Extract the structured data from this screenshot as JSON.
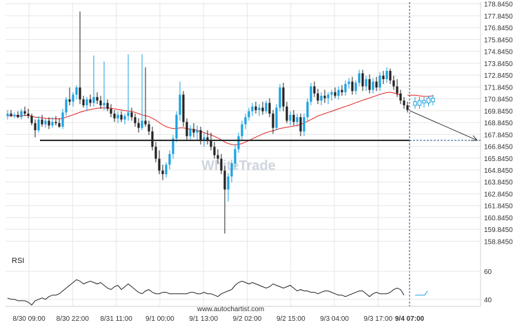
{
  "chart_data": {
    "type": "candlestick",
    "watermark": "WhiteTrade",
    "source": "www.autochartist.com",
    "y_ticks": [
      "178.8450",
      "177.8450",
      "176.8450",
      "175.8450",
      "174.8450",
      "173.8450",
      "172.8450",
      "171.8450",
      "170.8450",
      "169.8450",
      "168.8450",
      "167.8450",
      "166.8450",
      "165.8450",
      "164.8450",
      "163.8450",
      "162.8450",
      "161.8450",
      "160.8450",
      "159.8450",
      "158.8450"
    ],
    "ylim": [
      158.0,
      179.0
    ],
    "x_ticks": [
      "8/30 09:00",
      "8/30 22:00",
      "8/31 11:00",
      "9/1 00:00",
      "9/1 13:00",
      "9/2 02:00",
      "9/2 15:00",
      "9/3 04:00",
      "9/3 17:00",
      "9/4 07:00"
    ],
    "current_x_label": "9/4 07:00",
    "support_level": 167.35,
    "forecast": {
      "from_y": 169.85,
      "to_y": 167.35
    },
    "rsi": {
      "label": "RSI",
      "ticks": [
        "60",
        "40"
      ],
      "ylim": [
        35,
        63
      ]
    },
    "colors": {
      "bull": "#1ba1e2",
      "bear": "#222222",
      "ma": "#e02020",
      "support": "#222222",
      "forecast": "#333333",
      "grid": "#e6e6e6",
      "rsi": "#222222",
      "projection": "#1ba1e2"
    },
    "candles": [
      {
        "o": 169.4,
        "h": 169.9,
        "l": 169.1,
        "c": 169.6
      },
      {
        "o": 169.6,
        "h": 169.9,
        "l": 169.3,
        "c": 169.4
      },
      {
        "o": 169.4,
        "h": 169.7,
        "l": 169.2,
        "c": 169.5
      },
      {
        "o": 169.5,
        "h": 169.8,
        "l": 169.2,
        "c": 169.3
      },
      {
        "o": 169.3,
        "h": 170.0,
        "l": 169.1,
        "c": 169.8
      },
      {
        "o": 169.8,
        "h": 170.2,
        "l": 169.4,
        "c": 169.6
      },
      {
        "o": 169.6,
        "h": 170.0,
        "l": 169.2,
        "c": 169.4
      },
      {
        "o": 169.4,
        "h": 169.6,
        "l": 168.6,
        "c": 168.8
      },
      {
        "o": 168.8,
        "h": 169.1,
        "l": 167.6,
        "c": 168.2
      },
      {
        "o": 168.2,
        "h": 169.4,
        "l": 168.0,
        "c": 169.1
      },
      {
        "o": 169.1,
        "h": 169.5,
        "l": 168.5,
        "c": 168.7
      },
      {
        "o": 168.7,
        "h": 169.2,
        "l": 168.4,
        "c": 169.0
      },
      {
        "o": 169.0,
        "h": 169.3,
        "l": 168.3,
        "c": 168.6
      },
      {
        "o": 168.6,
        "h": 169.3,
        "l": 168.4,
        "c": 168.9
      },
      {
        "o": 168.9,
        "h": 169.4,
        "l": 168.6,
        "c": 168.8
      },
      {
        "o": 168.8,
        "h": 169.2,
        "l": 168.4,
        "c": 168.5
      },
      {
        "o": 168.5,
        "h": 170.0,
        "l": 168.3,
        "c": 169.7
      },
      {
        "o": 169.7,
        "h": 171.0,
        "l": 169.4,
        "c": 170.8
      },
      {
        "o": 170.8,
        "h": 171.8,
        "l": 170.3,
        "c": 170.6
      },
      {
        "o": 170.6,
        "h": 171.4,
        "l": 170.2,
        "c": 171.2
      },
      {
        "o": 171.2,
        "h": 172.0,
        "l": 170.8,
        "c": 171.8
      },
      {
        "o": 171.8,
        "h": 178.2,
        "l": 170.4,
        "c": 170.8
      },
      {
        "o": 170.8,
        "h": 171.1,
        "l": 170.1,
        "c": 170.3
      },
      {
        "o": 170.3,
        "h": 171.0,
        "l": 169.8,
        "c": 170.8
      },
      {
        "o": 170.8,
        "h": 171.2,
        "l": 170.2,
        "c": 170.5
      },
      {
        "o": 170.5,
        "h": 174.5,
        "l": 170.2,
        "c": 171.0
      },
      {
        "o": 171.0,
        "h": 171.4,
        "l": 170.4,
        "c": 170.7
      },
      {
        "o": 170.7,
        "h": 171.1,
        "l": 170.0,
        "c": 170.3
      },
      {
        "o": 170.3,
        "h": 174.0,
        "l": 169.9,
        "c": 170.5
      },
      {
        "o": 170.5,
        "h": 170.8,
        "l": 169.8,
        "c": 170.0
      },
      {
        "o": 170.0,
        "h": 170.4,
        "l": 169.3,
        "c": 169.6
      },
      {
        "o": 169.6,
        "h": 169.9,
        "l": 168.9,
        "c": 169.2
      },
      {
        "o": 169.2,
        "h": 169.8,
        "l": 168.8,
        "c": 169.5
      },
      {
        "o": 169.5,
        "h": 169.8,
        "l": 168.9,
        "c": 169.1
      },
      {
        "o": 169.1,
        "h": 169.6,
        "l": 168.7,
        "c": 169.4
      },
      {
        "o": 169.4,
        "h": 174.6,
        "l": 169.0,
        "c": 169.7
      },
      {
        "o": 169.7,
        "h": 170.1,
        "l": 169.0,
        "c": 169.3
      },
      {
        "o": 169.3,
        "h": 169.6,
        "l": 168.5,
        "c": 168.8
      },
      {
        "o": 168.8,
        "h": 169.2,
        "l": 168.0,
        "c": 168.4
      },
      {
        "o": 168.4,
        "h": 174.6,
        "l": 168.2,
        "c": 169.0
      },
      {
        "o": 169.0,
        "h": 173.5,
        "l": 168.5,
        "c": 168.7
      },
      {
        "o": 168.7,
        "h": 169.0,
        "l": 167.8,
        "c": 168.1
      },
      {
        "o": 168.1,
        "h": 168.5,
        "l": 166.5,
        "c": 166.8
      },
      {
        "o": 166.8,
        "h": 167.2,
        "l": 165.5,
        "c": 165.8
      },
      {
        "o": 165.8,
        "h": 166.5,
        "l": 164.5,
        "c": 164.8
      },
      {
        "o": 164.8,
        "h": 165.3,
        "l": 164.0,
        "c": 164.5
      },
      {
        "o": 164.5,
        "h": 165.5,
        "l": 164.2,
        "c": 165.3
      },
      {
        "o": 165.3,
        "h": 166.5,
        "l": 164.9,
        "c": 166.2
      },
      {
        "o": 166.2,
        "h": 167.8,
        "l": 165.8,
        "c": 167.5
      },
      {
        "o": 167.5,
        "h": 169.8,
        "l": 167.2,
        "c": 169.5
      },
      {
        "o": 169.5,
        "h": 172.3,
        "l": 169.0,
        "c": 171.2
      },
      {
        "o": 171.2,
        "h": 171.5,
        "l": 168.5,
        "c": 168.9
      },
      {
        "o": 168.9,
        "h": 169.2,
        "l": 167.3,
        "c": 167.7
      },
      {
        "o": 167.7,
        "h": 168.6,
        "l": 167.3,
        "c": 168.3
      },
      {
        "o": 168.3,
        "h": 168.8,
        "l": 167.6,
        "c": 168.0
      },
      {
        "o": 168.0,
        "h": 168.6,
        "l": 167.4,
        "c": 168.2
      },
      {
        "o": 168.2,
        "h": 168.5,
        "l": 167.0,
        "c": 167.3
      },
      {
        "o": 167.3,
        "h": 168.0,
        "l": 166.8,
        "c": 167.6
      },
      {
        "o": 167.6,
        "h": 168.2,
        "l": 167.0,
        "c": 167.3
      },
      {
        "o": 167.3,
        "h": 168.0,
        "l": 166.5,
        "c": 166.8
      },
      {
        "o": 166.8,
        "h": 167.2,
        "l": 165.8,
        "c": 166.1
      },
      {
        "o": 166.1,
        "h": 166.6,
        "l": 165.4,
        "c": 165.8
      },
      {
        "o": 165.8,
        "h": 166.2,
        "l": 164.5,
        "c": 164.8
      },
      {
        "o": 164.8,
        "h": 165.2,
        "l": 159.5,
        "c": 163.2
      },
      {
        "o": 163.2,
        "h": 164.6,
        "l": 162.2,
        "c": 164.3
      },
      {
        "o": 164.3,
        "h": 165.7,
        "l": 163.8,
        "c": 165.4
      },
      {
        "o": 165.4,
        "h": 167.0,
        "l": 165.0,
        "c": 166.6
      },
      {
        "o": 166.6,
        "h": 168.0,
        "l": 166.3,
        "c": 167.7
      },
      {
        "o": 167.7,
        "h": 169.0,
        "l": 167.4,
        "c": 168.7
      },
      {
        "o": 168.7,
        "h": 169.6,
        "l": 168.3,
        "c": 169.3
      },
      {
        "o": 169.3,
        "h": 170.1,
        "l": 169.0,
        "c": 169.8
      },
      {
        "o": 169.8,
        "h": 170.5,
        "l": 169.4,
        "c": 170.2
      },
      {
        "o": 170.2,
        "h": 170.6,
        "l": 169.6,
        "c": 169.9
      },
      {
        "o": 169.9,
        "h": 170.4,
        "l": 169.4,
        "c": 170.1
      },
      {
        "o": 170.1,
        "h": 170.6,
        "l": 169.5,
        "c": 169.8
      },
      {
        "o": 169.8,
        "h": 170.7,
        "l": 169.6,
        "c": 170.5
      },
      {
        "o": 170.5,
        "h": 170.9,
        "l": 169.3,
        "c": 169.6
      },
      {
        "o": 169.6,
        "h": 169.9,
        "l": 167.9,
        "c": 168.4
      },
      {
        "o": 168.4,
        "h": 170.4,
        "l": 168.2,
        "c": 170.1
      },
      {
        "o": 170.1,
        "h": 172.1,
        "l": 169.8,
        "c": 171.8
      },
      {
        "o": 171.8,
        "h": 172.2,
        "l": 169.8,
        "c": 170.2
      },
      {
        "o": 170.2,
        "h": 170.6,
        "l": 168.8,
        "c": 169.0
      },
      {
        "o": 169.0,
        "h": 169.8,
        "l": 168.6,
        "c": 169.5
      },
      {
        "o": 169.5,
        "h": 169.9,
        "l": 168.6,
        "c": 168.9
      },
      {
        "o": 168.9,
        "h": 169.6,
        "l": 168.5,
        "c": 169.3
      },
      {
        "o": 169.3,
        "h": 169.6,
        "l": 167.7,
        "c": 168.1
      },
      {
        "o": 168.1,
        "h": 169.6,
        "l": 167.7,
        "c": 169.3
      },
      {
        "o": 169.3,
        "h": 170.9,
        "l": 169.0,
        "c": 170.6
      },
      {
        "o": 170.6,
        "h": 172.2,
        "l": 170.3,
        "c": 171.9
      },
      {
        "o": 171.9,
        "h": 172.3,
        "l": 171.0,
        "c": 171.3
      },
      {
        "o": 171.3,
        "h": 171.7,
        "l": 170.4,
        "c": 170.7
      },
      {
        "o": 170.7,
        "h": 171.4,
        "l": 170.3,
        "c": 171.1
      },
      {
        "o": 171.1,
        "h": 171.6,
        "l": 170.5,
        "c": 170.9
      },
      {
        "o": 170.9,
        "h": 171.4,
        "l": 170.4,
        "c": 171.2
      },
      {
        "o": 171.2,
        "h": 171.6,
        "l": 170.7,
        "c": 171.4
      },
      {
        "o": 171.4,
        "h": 171.8,
        "l": 170.9,
        "c": 171.1
      },
      {
        "o": 171.1,
        "h": 171.9,
        "l": 170.8,
        "c": 171.6
      },
      {
        "o": 171.6,
        "h": 172.0,
        "l": 171.1,
        "c": 171.4
      },
      {
        "o": 171.4,
        "h": 172.4,
        "l": 171.1,
        "c": 172.1
      },
      {
        "o": 172.1,
        "h": 172.6,
        "l": 171.7,
        "c": 172.3
      },
      {
        "o": 172.3,
        "h": 172.7,
        "l": 171.2,
        "c": 171.5
      },
      {
        "o": 171.5,
        "h": 172.4,
        "l": 171.2,
        "c": 172.2
      },
      {
        "o": 172.2,
        "h": 173.3,
        "l": 171.9,
        "c": 173.0
      },
      {
        "o": 173.0,
        "h": 173.3,
        "l": 171.5,
        "c": 171.9
      },
      {
        "o": 171.9,
        "h": 172.8,
        "l": 171.5,
        "c": 172.5
      },
      {
        "o": 172.5,
        "h": 172.9,
        "l": 171.3,
        "c": 171.6
      },
      {
        "o": 171.6,
        "h": 172.6,
        "l": 171.3,
        "c": 172.3
      },
      {
        "o": 172.3,
        "h": 172.7,
        "l": 171.5,
        "c": 171.8
      },
      {
        "o": 171.8,
        "h": 173.1,
        "l": 171.5,
        "c": 172.8
      },
      {
        "o": 172.8,
        "h": 173.2,
        "l": 172.1,
        "c": 172.5
      },
      {
        "o": 172.5,
        "h": 173.5,
        "l": 172.2,
        "c": 173.2
      },
      {
        "o": 173.2,
        "h": 173.4,
        "l": 172.1,
        "c": 172.4
      },
      {
        "o": 172.4,
        "h": 172.8,
        "l": 171.6,
        "c": 171.9
      },
      {
        "o": 171.9,
        "h": 172.5,
        "l": 171.0,
        "c": 171.3
      },
      {
        "o": 171.3,
        "h": 171.6,
        "l": 170.4,
        "c": 170.7
      },
      {
        "o": 170.7,
        "h": 171.0,
        "l": 170.0,
        "c": 170.3
      },
      {
        "o": 170.3,
        "h": 170.6,
        "l": 169.7,
        "c": 169.9
      }
    ],
    "ma": [
      169.4,
      169.45,
      169.42,
      169.4,
      169.42,
      169.45,
      169.45,
      169.4,
      169.3,
      169.28,
      169.25,
      169.2,
      169.18,
      169.17,
      169.17,
      169.15,
      169.2,
      169.3,
      169.4,
      169.5,
      169.6,
      169.72,
      169.8,
      169.88,
      169.95,
      170.0,
      170.05,
      170.07,
      170.08,
      170.08,
      170.05,
      170.0,
      169.95,
      169.9,
      169.85,
      169.82,
      169.78,
      169.7,
      169.6,
      169.5,
      169.42,
      169.35,
      169.2,
      169.05,
      168.85,
      168.65,
      168.5,
      168.4,
      168.35,
      168.35,
      168.4,
      168.4,
      168.35,
      168.3,
      168.25,
      168.2,
      168.1,
      168.0,
      167.9,
      167.8,
      167.68,
      167.55,
      167.4,
      167.2,
      167.08,
      167.0,
      166.98,
      167.0,
      167.08,
      167.2,
      167.33,
      167.48,
      167.62,
      167.75,
      167.88,
      168.0,
      168.08,
      168.15,
      168.25,
      168.35,
      168.4,
      168.45,
      168.5,
      168.55,
      168.6,
      168.68,
      168.8,
      168.95,
      169.1,
      169.25,
      169.4,
      169.5,
      169.6,
      169.7,
      169.8,
      169.9,
      170.0,
      170.1,
      170.2,
      170.3,
      170.4,
      170.52,
      170.62,
      170.72,
      170.82,
      170.92,
      171.02,
      171.12,
      171.22,
      171.3,
      171.38,
      171.4,
      171.35,
      171.25,
      171.15
    ],
    "projection": [
      {
        "o": 170.6,
        "h": 171.0,
        "l": 170.0,
        "c": 170.3
      },
      {
        "o": 170.3,
        "h": 171.0,
        "l": 170.0,
        "c": 170.7
      },
      {
        "o": 170.7,
        "h": 171.0,
        "l": 170.1,
        "c": 170.5
      },
      {
        "o": 170.5,
        "h": 171.1,
        "l": 170.2,
        "c": 170.9
      },
      {
        "o": 170.9,
        "h": 171.2,
        "l": 170.3,
        "c": 170.6
      }
    ],
    "projection_ma": [
      171.15,
      171.1,
      171.05,
      171.05,
      171.1
    ],
    "rsi_values": [
      41,
      40,
      40,
      39,
      39,
      39,
      38,
      36,
      39,
      40,
      41,
      40,
      42,
      43,
      43,
      44,
      46,
      48,
      50,
      52,
      54,
      53,
      51,
      52,
      53,
      52,
      51,
      52,
      50,
      48,
      47,
      49,
      50,
      47,
      49,
      51,
      49,
      47,
      45,
      44,
      46,
      47,
      45,
      44,
      44,
      45,
      45,
      44,
      44,
      44,
      44,
      44,
      44,
      45,
      45,
      44,
      44,
      45,
      44,
      44,
      43,
      42,
      44,
      45,
      46,
      47,
      50,
      52,
      53,
      52,
      51,
      52,
      51,
      50,
      49,
      48,
      49,
      51,
      50,
      49,
      48,
      49,
      50,
      48,
      46,
      47,
      46,
      46,
      45,
      45,
      44,
      45,
      46,
      46,
      45,
      44,
      43,
      43,
      42,
      43,
      44,
      45,
      46,
      46,
      44,
      42,
      44,
      45,
      44,
      44,
      44,
      45,
      47,
      48,
      47,
      43
    ]
  }
}
